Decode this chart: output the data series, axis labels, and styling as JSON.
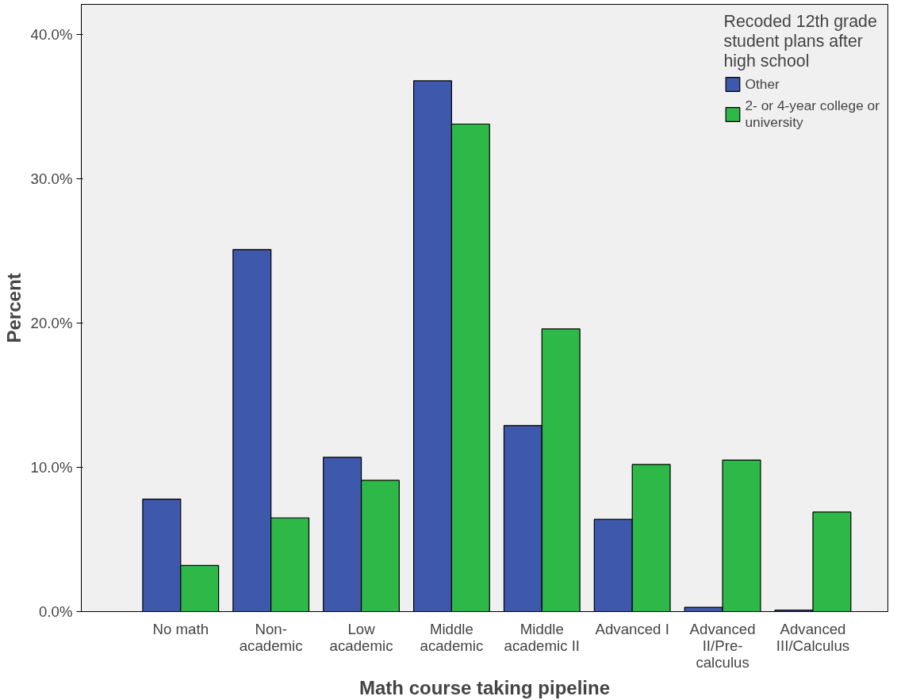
{
  "chart_data": {
    "type": "bar",
    "xlabel": "Math course taking pipeline",
    "ylabel": "Percent",
    "legend_title": "Recoded 12th grade\nstudent plans after\nhigh school",
    "categories": [
      "No math",
      "Non-\nacademic",
      "Low\nacademic",
      "Middle\nacademic",
      "Middle\nacademic II",
      "Advanced I",
      "Advanced\nII/Pre-\ncalculus",
      "Advanced\nIII/Calculus"
    ],
    "series": [
      {
        "name": "Other",
        "color": "#3e58ac",
        "values": [
          7.8,
          25.1,
          10.7,
          36.8,
          12.9,
          6.4,
          0.3,
          0.1
        ]
      },
      {
        "name": "2- or 4-year college or\nuniversity",
        "color": "#2eb848",
        "values": [
          3.2,
          6.5,
          9.1,
          33.8,
          19.6,
          10.2,
          10.5,
          6.9
        ]
      }
    ],
    "ylim": [
      0,
      42.1
    ],
    "yticks": [
      {
        "value": 0,
        "label": "0.0%"
      },
      {
        "value": 10,
        "label": "10.0%"
      },
      {
        "value": 20,
        "label": "20.0%"
      },
      {
        "value": 30,
        "label": "30.0%"
      },
      {
        "value": 40,
        "label": "40.0%"
      }
    ],
    "grid": false,
    "legend": "top right"
  }
}
